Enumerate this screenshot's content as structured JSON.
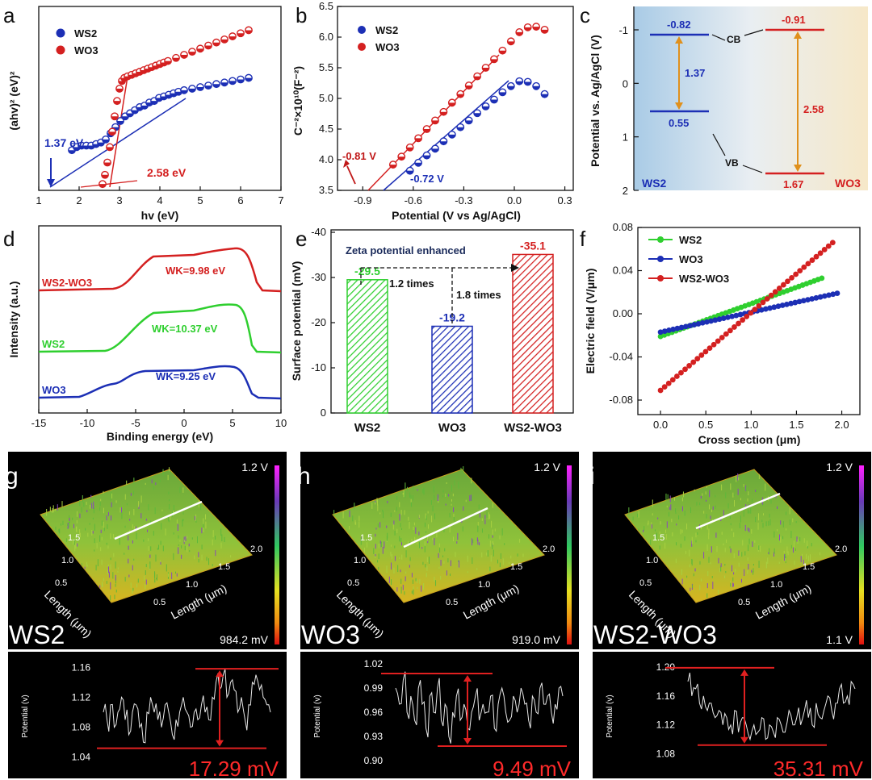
{
  "figure": {
    "panels": [
      "a",
      "b",
      "c",
      "d",
      "e",
      "f",
      "g",
      "h",
      "i"
    ]
  },
  "chart_data": [
    {
      "id": "a",
      "type": "scatter",
      "xlabel": "hv (eV)",
      "ylabel": "(ahv)² (eV)²",
      "xticks": [
        "1",
        "2",
        "3",
        "4",
        "5",
        "6",
        "7"
      ],
      "xlim": [
        1,
        7
      ],
      "legend": [
        "WS2",
        "WO3"
      ],
      "series": [
        {
          "name": "WS2",
          "color": "#1c2fb5",
          "x": [
            1.82,
            1.94,
            2.06,
            2.18,
            2.3,
            2.42,
            2.54,
            2.66,
            2.78,
            2.9,
            3.02,
            3.14,
            3.26,
            3.38,
            3.5,
            3.62,
            3.74,
            3.86,
            3.98,
            4.1,
            4.22,
            4.34,
            4.46,
            4.6,
            4.8,
            5.0,
            5.2,
            5.4,
            5.6,
            5.8,
            6.0,
            6.2
          ],
          "y": [
            0.24,
            0.26,
            0.27,
            0.27,
            0.27,
            0.28,
            0.29,
            0.31,
            0.35,
            0.39,
            0.43,
            0.46,
            0.48,
            0.5,
            0.52,
            0.53,
            0.55,
            0.56,
            0.58,
            0.59,
            0.6,
            0.61,
            0.62,
            0.63,
            0.64,
            0.65,
            0.66,
            0.67,
            0.68,
            0.69,
            0.7,
            0.71
          ]
        },
        {
          "name": "WO3",
          "color": "#d42020",
          "x": [
            2.58,
            2.64,
            2.7,
            2.76,
            2.82,
            2.88,
            2.94,
            3.0,
            3.06,
            3.12,
            3.2,
            3.3,
            3.4,
            3.5,
            3.6,
            3.7,
            3.8,
            3.9,
            4.0,
            4.1,
            4.2,
            4.4,
            4.6,
            4.8,
            5.0,
            5.2,
            5.4,
            5.6,
            5.8,
            6.0,
            6.2
          ],
          "y": [
            0.02,
            0.08,
            0.16,
            0.26,
            0.36,
            0.46,
            0.56,
            0.64,
            0.69,
            0.71,
            0.72,
            0.73,
            0.74,
            0.75,
            0.76,
            0.77,
            0.78,
            0.79,
            0.8,
            0.81,
            0.82,
            0.84,
            0.86,
            0.88,
            0.9,
            0.92,
            0.94,
            0.96,
            0.98,
            1.0,
            1.02
          ]
        }
      ],
      "annotations": [
        {
          "text": "1.37 eV",
          "color": "#1c2fb5"
        },
        {
          "text": "2.58 eV",
          "color": "#d42020"
        }
      ]
    },
    {
      "id": "b",
      "type": "scatter",
      "xlabel": "Potential (V vs Ag/AgCl)",
      "ylabel": "C⁻²×10¹⁰(F⁻²)",
      "xlim": [
        -1.05,
        0.35
      ],
      "ylim": [
        3.5,
        6.5
      ],
      "xticks": [
        "-0.9",
        "-0.6",
        "-0.3",
        "0.0",
        "0.3"
      ],
      "yticks": [
        "3.5",
        "4.0",
        "4.5",
        "5.0",
        "5.5",
        "6.0",
        "6.5"
      ],
      "legend": [
        "WS2",
        "WO3"
      ],
      "series": [
        {
          "name": "WS2",
          "color": "#1c2fb5",
          "x": [
            -0.62,
            -0.57,
            -0.52,
            -0.47,
            -0.42,
            -0.37,
            -0.32,
            -0.27,
            -0.22,
            -0.17,
            -0.12,
            -0.07,
            -0.02,
            0.03,
            0.08,
            0.13,
            0.18
          ],
          "y": [
            3.82,
            3.95,
            4.07,
            4.18,
            4.3,
            4.41,
            4.53,
            4.64,
            4.76,
            4.87,
            4.98,
            5.1,
            5.2,
            5.28,
            5.27,
            5.2,
            5.07
          ]
        },
        {
          "name": "WO3",
          "color": "#d42020",
          "x": [
            -0.72,
            -0.67,
            -0.62,
            -0.57,
            -0.52,
            -0.47,
            -0.42,
            -0.37,
            -0.32,
            -0.27,
            -0.22,
            -0.17,
            -0.12,
            -0.07,
            -0.02,
            0.03,
            0.08,
            0.13,
            0.18
          ],
          "y": [
            3.92,
            4.05,
            4.2,
            4.35,
            4.5,
            4.64,
            4.78,
            4.93,
            5.07,
            5.21,
            5.36,
            5.5,
            5.64,
            5.78,
            5.93,
            6.08,
            6.16,
            6.17,
            6.12
          ]
        }
      ],
      "annotations": [
        {
          "text": "-0.81 V",
          "color": "#c01818"
        },
        {
          "text": "-0.72 V",
          "color": "#1c2fb5"
        }
      ]
    },
    {
      "id": "c",
      "type": "diagram",
      "ylabel": "Potential vs. Ag/AgCl (V)",
      "yticks": [
        "-1",
        "0",
        "1",
        "2"
      ],
      "ws2": {
        "label": "WS2",
        "cb": "-0.82",
        "vb": "0.55",
        "gap": "1.37"
      },
      "wo3": {
        "label": "WO3",
        "cb": "-0.91",
        "vb": "1.67",
        "gap": "2.58"
      },
      "cb_label": "CB",
      "vb_label": "VB"
    },
    {
      "id": "d",
      "type": "line",
      "xlabel": "Binding energy (eV)",
      "ylabel": "Intensity (a.u.)",
      "xticks": [
        "-15",
        "-10",
        "-5",
        "0",
        "5",
        "10"
      ],
      "xlim": [
        -15,
        10
      ],
      "series": [
        {
          "name": "WS2-WO3",
          "color": "#d42020",
          "wk": "WK=9.98 eV"
        },
        {
          "name": "WS2",
          "color": "#2fcf2f",
          "wk": "WK=10.37 eV"
        },
        {
          "name": "WO3",
          "color": "#1c2fb5",
          "wk": "WK=9.25 eV"
        }
      ]
    },
    {
      "id": "e",
      "type": "bar",
      "title": "Zeta potential enhanced",
      "ylabel": "Surface potential (mV)",
      "categories": [
        "WS2",
        "WO3",
        "WS2-WO3"
      ],
      "values": [
        -29.5,
        -19.2,
        -35.1
      ],
      "value_labels": [
        "-29.5",
        "-19.2",
        "-35.1"
      ],
      "colors": [
        "#2fcf2f",
        "#1c2fb5",
        "#d42020"
      ],
      "ylim": [
        0,
        -40
      ],
      "yticks": [
        "0",
        "-10",
        "-20",
        "-30",
        "-40"
      ],
      "annotations": [
        "1.2 times",
        "1.8 times"
      ]
    },
    {
      "id": "f",
      "type": "scatter",
      "xlabel": "Cross section (μm)",
      "ylabel": "Electric field (V/μm)",
      "xlim": [
        -0.25,
        2.2
      ],
      "ylim": [
        -0.08,
        0.08
      ],
      "xticks": [
        "0.0",
        "0.5",
        "1.0",
        "1.5",
        "2.0"
      ],
      "yticks": [
        "-0.08",
        "-0.04",
        "0.00",
        "0.04",
        "0.08"
      ],
      "series": [
        {
          "name": "WS2",
          "color": "#2fcf2f",
          "x0": 0.0,
          "x1": 1.78,
          "y0": -0.021,
          "y1": 0.033
        },
        {
          "name": "WO3",
          "color": "#1c2fb5",
          "x0": 0.0,
          "x1": 1.95,
          "y0": -0.017,
          "y1": 0.019
        },
        {
          "name": "WS2-WO3",
          "color": "#d42020",
          "x0": 0.0,
          "x1": 1.9,
          "y0": -0.071,
          "y1": 0.066
        }
      ]
    },
    {
      "id": "g",
      "type": "line",
      "sample": "WS2",
      "scale_top": "1.2 V",
      "scale_bottom": "984.2 mV",
      "axis_length_a": "Length (μm)",
      "axis_length_b": "Length (μm)",
      "ticks_a": [
        "0.5",
        "1.0",
        "1.5"
      ],
      "ticks_b": [
        "0.5",
        "1.0",
        "1.5",
        "2.0"
      ],
      "profile_ylabel": "Potential (v)",
      "profile_yticks": [
        "1.04",
        "1.08",
        "1.12",
        "1.16"
      ],
      "profile_ylim": [
        1.03,
        1.17
      ],
      "difference": "17.29 mV",
      "profile": [
        1.1,
        1.09,
        1.11,
        1.08,
        1.1,
        1.12,
        1.09,
        1.07,
        1.1,
        1.11,
        1.08,
        1.06,
        1.1,
        1.12,
        1.1,
        1.09,
        1.08,
        1.11,
        1.1,
        1.07,
        1.09,
        1.1,
        1.12,
        1.1,
        1.08,
        1.1,
        1.09,
        1.11,
        1.1,
        1.09,
        1.12,
        1.14,
        1.13,
        1.15,
        1.12,
        1.14,
        1.13,
        1.1,
        1.12,
        1.09,
        1.11,
        1.14,
        1.15,
        1.13,
        1.12,
        1.11,
        1.1
      ],
      "hline_top": 1.158,
      "hline_bottom": 1.052
    },
    {
      "id": "h",
      "type": "line",
      "sample": "WO3",
      "scale_top": "1.2 V",
      "scale_bottom": "919.0 mV",
      "axis_length_a": "Length (μm)",
      "axis_length_b": "Length (μm)",
      "ticks_a": [
        "0.5",
        "1.0",
        "1.5"
      ],
      "ticks_b": [
        "0.5",
        "1.0",
        "1.5",
        "2.0"
      ],
      "profile_ylabel": "Potential (v)",
      "profile_yticks": [
        "0.90",
        "0.93",
        "0.96",
        "0.99",
        "1.02"
      ],
      "profile_ylim": [
        0.895,
        1.025
      ],
      "difference": "9.49 mV",
      "profile": [
        0.99,
        0.97,
        1.0,
        0.96,
        0.98,
        0.95,
        0.99,
        0.97,
        0.94,
        0.98,
        0.96,
        0.99,
        0.95,
        0.97,
        0.93,
        0.96,
        0.98,
        0.95,
        0.97,
        0.94,
        0.96,
        0.98,
        0.95,
        0.97,
        0.96,
        0.98,
        0.94,
        0.97,
        0.99,
        0.96,
        0.95,
        0.98,
        0.96,
        0.99,
        0.97,
        0.95,
        0.98,
        0.96,
        0.99,
        0.97,
        0.98,
        0.96,
        0.97,
        0.99,
        0.98
      ],
      "hline_top": 1.008,
      "hline_bottom": 0.918
    },
    {
      "id": "i",
      "type": "line",
      "sample": "WS2-WO3",
      "scale_top": "1.2 V",
      "scale_bottom": "1.1 V",
      "axis_length_a": "Length (μm)",
      "axis_length_b": "Length (μm)",
      "ticks_a": [
        "0.5",
        "1.0",
        "1.5"
      ],
      "ticks_b": [
        "0.5",
        "1.0",
        "1.5",
        "2.0"
      ],
      "profile_ylabel": "Potential (v)",
      "profile_yticks": [
        "1.08",
        "1.12",
        "1.16",
        "1.20"
      ],
      "profile_ylim": [
        1.065,
        1.21
      ],
      "difference": "35.31 mV",
      "profile": [
        1.18,
        1.16,
        1.17,
        1.15,
        1.16,
        1.14,
        1.15,
        1.13,
        1.14,
        1.12,
        1.13,
        1.12,
        1.14,
        1.11,
        1.13,
        1.12,
        1.1,
        1.12,
        1.11,
        1.13,
        1.1,
        1.12,
        1.11,
        1.13,
        1.12,
        1.11,
        1.14,
        1.12,
        1.13,
        1.12,
        1.14,
        1.13,
        1.12,
        1.15,
        1.13,
        1.14,
        1.16,
        1.14,
        1.15,
        1.17,
        1.15,
        1.16,
        1.18,
        1.17
      ],
      "hline_top": 1.199,
      "hline_bottom": 1.092
    }
  ]
}
